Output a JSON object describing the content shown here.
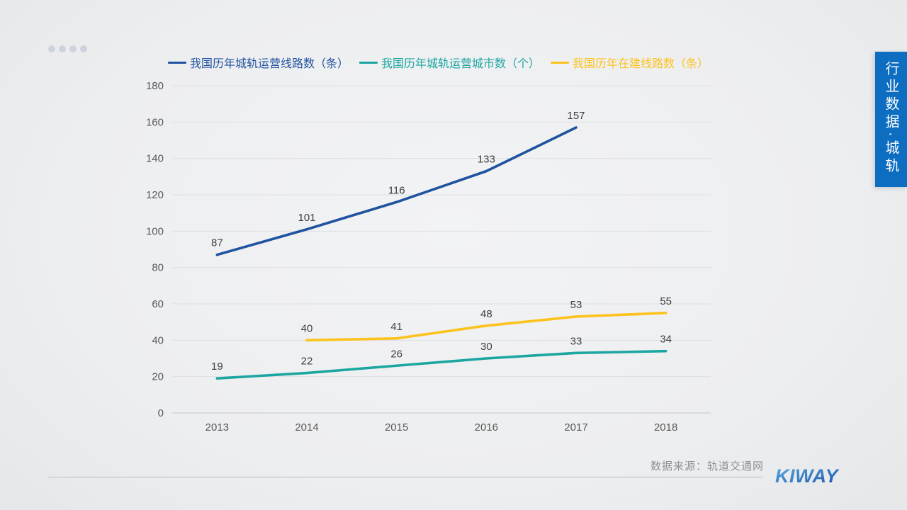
{
  "slide": {
    "progress_dots_count": 4
  },
  "sidebar": {
    "label": "行业数据·城轨",
    "bg_color": "#0d6ec1",
    "text_color": "#ffffff"
  },
  "footer": {
    "source": "数据来源：轨道交通网",
    "logo": "KIWAY",
    "logo_gradient": [
      "#55ace1",
      "#1c50a9"
    ]
  },
  "chart_data": {
    "type": "line",
    "title": "",
    "x": [
      "2013",
      "2014",
      "2015",
      "2016",
      "2017",
      "2018"
    ],
    "ylim": [
      0,
      180
    ],
    "ytick_step": 20,
    "grid": true,
    "legend_position": "top",
    "data_labels": true,
    "axis_text_color": "#595959",
    "grid_color": "#dddfe2",
    "baseline_color": "#c5c7ca",
    "data_label_color": "#3f3f3f",
    "series": [
      {
        "name": "我国历年城轨运营线路数（条）",
        "color": "#1f529f",
        "x": [
          "2013",
          "2014",
          "2015",
          "2016",
          "2017"
        ],
        "values": [
          87,
          101,
          116,
          133,
          157
        ]
      },
      {
        "name": "我国历年城轨运营城市数（个）",
        "color": "#1ca6a1",
        "x": [
          "2013",
          "2014",
          "2015",
          "2016",
          "2017",
          "2018"
        ],
        "values": [
          19,
          22,
          26,
          30,
          33,
          34
        ]
      },
      {
        "name": "我国历年在建线路数（条）",
        "color": "#fcc21d",
        "x": [
          "2014",
          "2015",
          "2016",
          "2017",
          "2018"
        ],
        "values": [
          40,
          41,
          48,
          53,
          55
        ]
      }
    ]
  }
}
